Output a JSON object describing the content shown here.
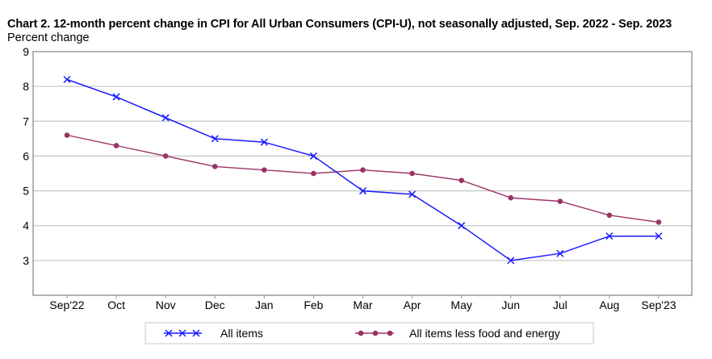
{
  "chart_data": {
    "type": "line",
    "title": "Chart 2. 12-month percent change in CPI for All Urban Consumers (CPI-U), not seasonally adjusted, Sep. 2022 - Sep. 2023",
    "ylabel": "Percent change",
    "xlabel": "",
    "ylim": [
      2,
      9
    ],
    "yticks": [
      3,
      4,
      5,
      6,
      7,
      8,
      9
    ],
    "grid": true,
    "legend_position": "bottom",
    "categories": [
      "Sep'22",
      "Oct",
      "Nov",
      "Dec",
      "Jan",
      "Feb",
      "Mar",
      "Apr",
      "May",
      "Jun",
      "Jul",
      "Aug",
      "Sep'23"
    ],
    "series": [
      {
        "name": "All items",
        "color": "#1a1aff",
        "marker": "x",
        "values": [
          8.2,
          7.7,
          7.1,
          6.5,
          6.4,
          6.0,
          5.0,
          4.9,
          4.0,
          3.0,
          3.2,
          3.7,
          3.7
        ]
      },
      {
        "name": "All items less food and energy",
        "color": "#9b3366",
        "marker": "circle",
        "values": [
          6.6,
          6.3,
          6.0,
          5.7,
          5.6,
          5.5,
          5.6,
          5.5,
          5.3,
          4.8,
          4.7,
          4.3,
          4.1
        ]
      }
    ]
  },
  "colors": {
    "gridline": "#c8c8c8",
    "axis": "#9a9a9a",
    "legend_border": "#c8c8c8"
  }
}
